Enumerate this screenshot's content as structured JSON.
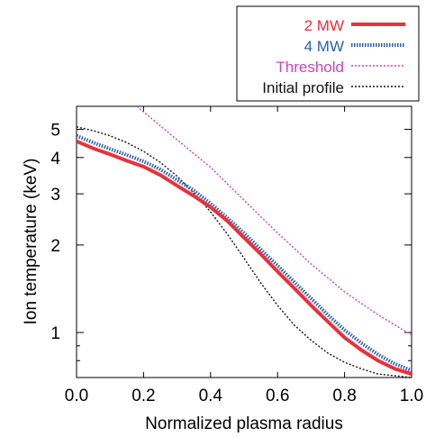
{
  "chart_data": {
    "type": "line",
    "title": "",
    "xlabel": "Normalized plasma radius",
    "ylabel": "Ion temperature (keV)",
    "xlim": [
      0.0,
      1.0
    ],
    "ylim": [
      0.7,
      6.0
    ],
    "yscale": "log",
    "grid": false,
    "legend_position": "top-right, outside plot",
    "x_ticks": [
      0.0,
      0.2,
      0.4,
      0.6,
      0.8,
      1.0
    ],
    "x_tick_labels": [
      "0.0",
      "0.2",
      "0.4",
      "0.6",
      "0.8",
      "1.0"
    ],
    "y_ticks": [
      1,
      2,
      3,
      4,
      5
    ],
    "y_tick_labels": [
      "1",
      "2",
      "3",
      "4",
      "5"
    ],
    "series": [
      {
        "name": "2 MW",
        "color": "#e8323c",
        "style": "solid-thick",
        "x": [
          0.0,
          0.05,
          0.1,
          0.15,
          0.2,
          0.25,
          0.3,
          0.35,
          0.4,
          0.45,
          0.5,
          0.55,
          0.6,
          0.65,
          0.7,
          0.75,
          0.8,
          0.85,
          0.9,
          0.95,
          1.0
        ],
        "y": [
          4.55,
          4.3,
          4.1,
          3.9,
          3.72,
          3.48,
          3.2,
          2.95,
          2.7,
          2.42,
          2.12,
          1.86,
          1.62,
          1.42,
          1.24,
          1.09,
          0.96,
          0.87,
          0.8,
          0.75,
          0.72
        ]
      },
      {
        "name": "4 MW",
        "color": "#2a5fb0",
        "style": "dotted-thick",
        "x": [
          0.0,
          0.05,
          0.1,
          0.15,
          0.2,
          0.25,
          0.3,
          0.35,
          0.4,
          0.45,
          0.5,
          0.55,
          0.6,
          0.65,
          0.7,
          0.75,
          0.8,
          0.85,
          0.9,
          0.95,
          1.0
        ],
        "y": [
          4.75,
          4.5,
          4.28,
          4.08,
          3.88,
          3.64,
          3.35,
          3.08,
          2.78,
          2.48,
          2.2,
          1.93,
          1.7,
          1.49,
          1.31,
          1.15,
          1.02,
          0.92,
          0.84,
          0.78,
          0.74
        ]
      },
      {
        "name": "Threshold",
        "color": "#cc44bb",
        "style": "dotted-thin",
        "x": [
          0.18,
          0.3,
          0.4,
          0.5,
          0.6,
          0.7,
          0.8,
          0.9,
          1.0
        ],
        "y": [
          6.0,
          4.6,
          3.7,
          2.85,
          2.2,
          1.72,
          1.38,
          1.15,
          0.98
        ]
      },
      {
        "name": "Initial profile",
        "color": "#111111",
        "style": "dotted-thin",
        "x": [
          0.0,
          0.05,
          0.1,
          0.15,
          0.2,
          0.25,
          0.3,
          0.35,
          0.4,
          0.45,
          0.5,
          0.55,
          0.6,
          0.65,
          0.7,
          0.75,
          0.8,
          0.85,
          0.9,
          0.95,
          1.0
        ],
        "y": [
          5.1,
          4.95,
          4.75,
          4.5,
          4.2,
          3.85,
          3.45,
          3.02,
          2.6,
          2.18,
          1.8,
          1.48,
          1.24,
          1.06,
          0.94,
          0.85,
          0.79,
          0.75,
          0.72,
          0.71,
          0.7
        ]
      }
    ]
  }
}
